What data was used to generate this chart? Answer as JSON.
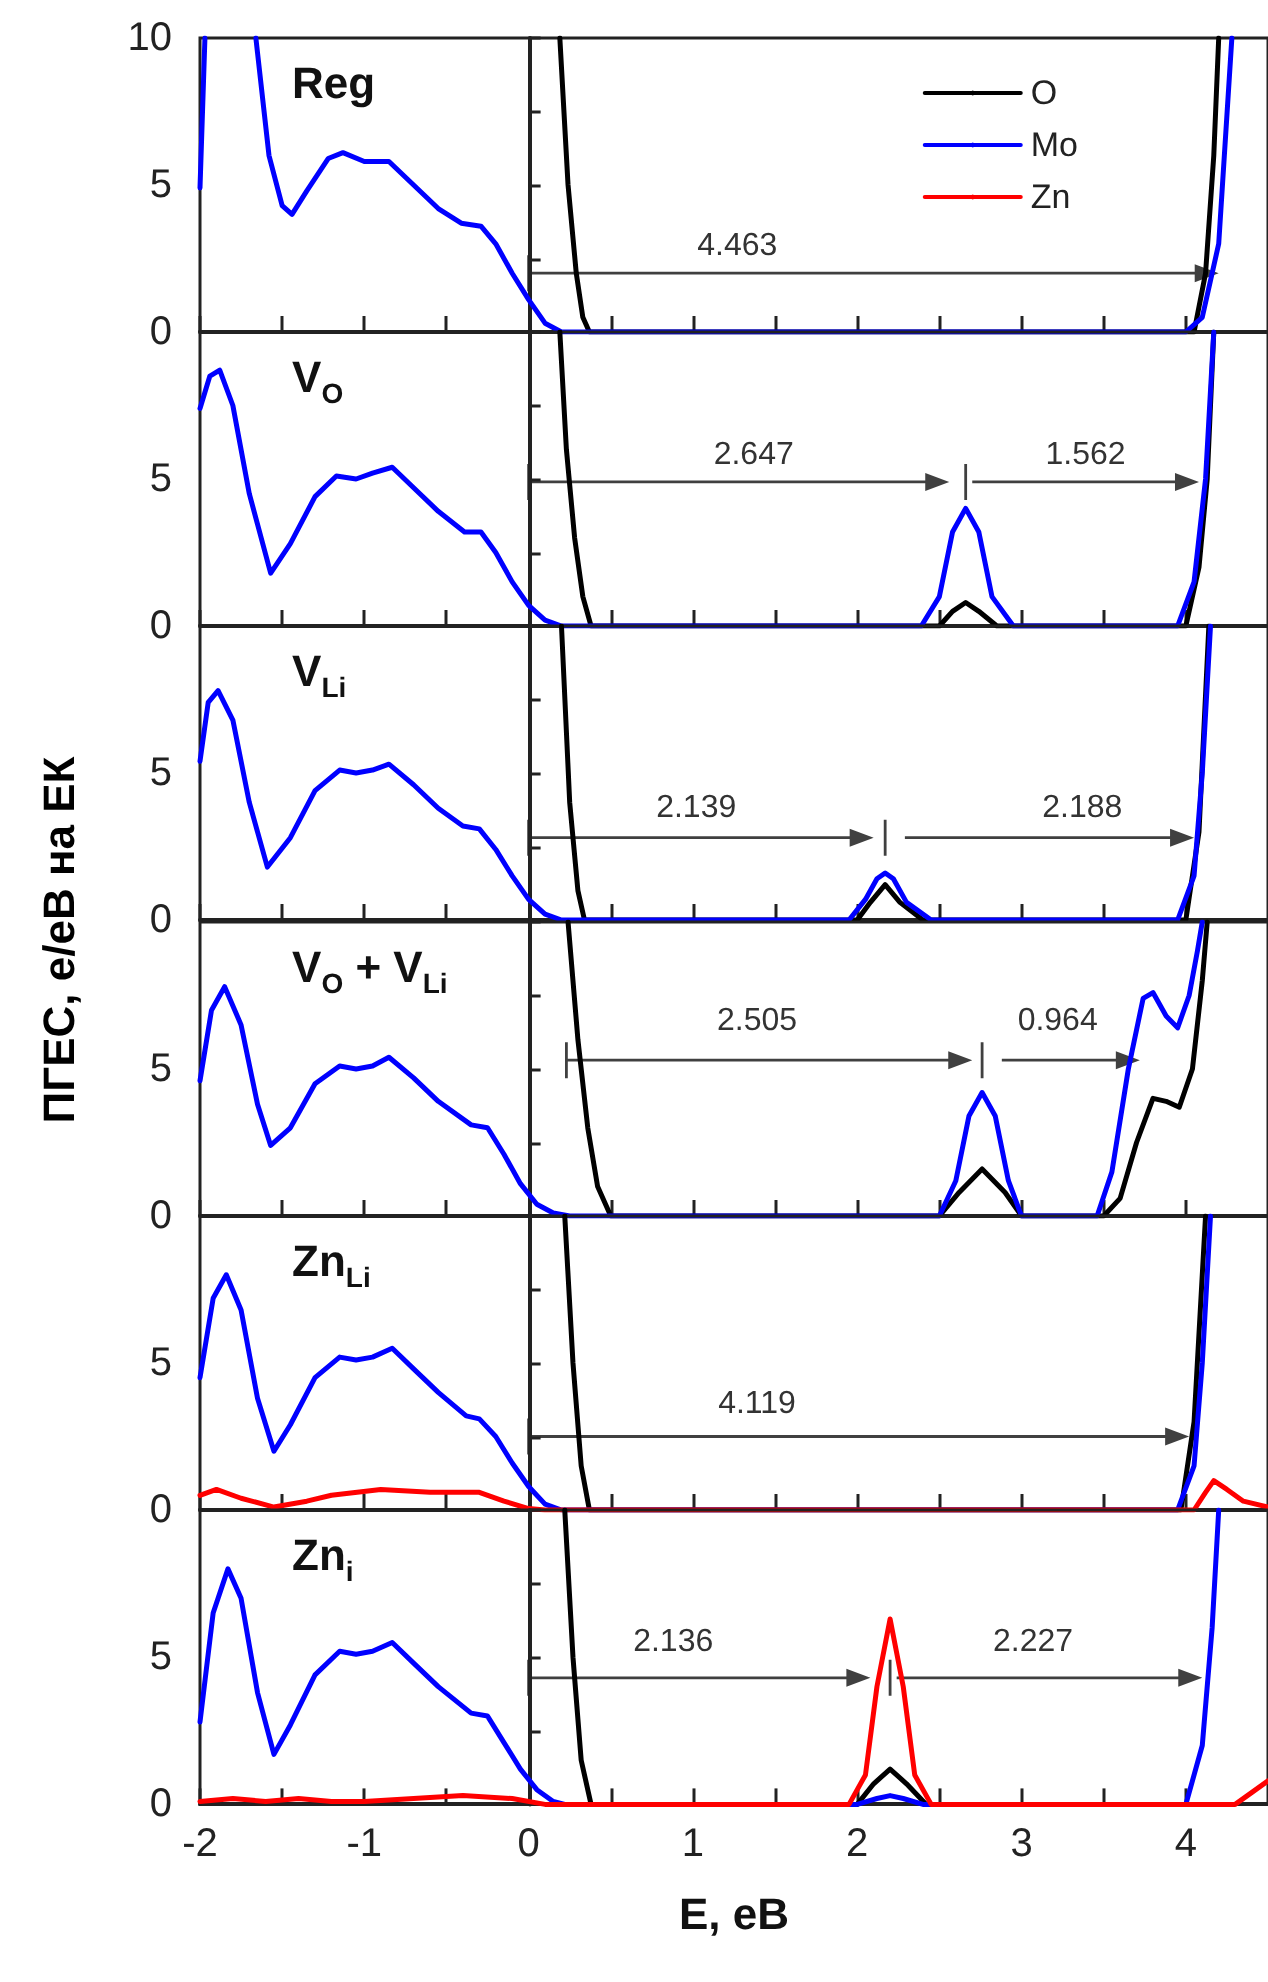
{
  "chart_data": [
    {
      "type": "line",
      "title": "Reg",
      "marker": "none",
      "line_style": "solid",
      "legend": "top right",
      "tick_labels": "y",
      "xlim": [
        -2,
        4.5
      ],
      "ylim": [
        0,
        10
      ],
      "xticks": [
        -2,
        {
          "value": -1.5,
          "label": null
        },
        -1,
        {
          "value": -0.5,
          "label": null
        },
        0,
        {
          "value": 0.5,
          "label": null
        },
        1,
        {
          "value": 1.5,
          "label": null
        },
        2,
        {
          "value": 2.5,
          "label": null
        },
        3,
        {
          "value": 3.5,
          "label": null
        },
        4
      ],
      "yticks": [
        0,
        {
          "value": 2.5,
          "label": null
        },
        5,
        {
          "value": 7.5,
          "label": null
        },
        10
      ],
      "annotations": [
        "4.463"
      ],
      "series": [
        {
          "name": "O",
          "color": "#000000",
          "x": [
            0.19,
            0.24,
            0.29,
            0.33,
            0.37,
            4.05,
            4.12,
            4.17,
            4.2
          ],
          "values": [
            10,
            5,
            2,
            0.5,
            0,
            0,
            2,
            6,
            10
          ]
        },
        {
          "name": "Mo",
          "color": "#0000ff",
          "x": [
            -2,
            -1.97,
            -1.8,
            -1.66,
            -1.58,
            -1.5,
            -1.44,
            -1.35,
            -1.22,
            -1.13,
            -1.0,
            -0.85,
            -0.7,
            -0.55,
            -0.41,
            -0.29,
            -0.2,
            -0.1,
            0,
            0.1,
            0.2,
            4.0,
            4.1,
            4.2,
            4.28
          ],
          "values": [
            4.9,
            10,
            null,
            10,
            6,
            4.3,
            4.0,
            4.8,
            5.9,
            6.1,
            5.8,
            5.8,
            5.0,
            4.2,
            3.7,
            3.6,
            3.0,
            2.0,
            1.1,
            0.3,
            0,
            0,
            0.5,
            3,
            10
          ]
        },
        {
          "name": "Zn",
          "color": "#ff0000"
        }
      ]
    },
    {
      "type": "line",
      "title": "V$_{O}$",
      "marker": "none",
      "line_style": "solid",
      "tick_labels": "y",
      "xlim": [
        -2,
        4.5
      ],
      "ylim": [
        0,
        10
      ],
      "xticks": [
        -2,
        {
          "value": -1.5,
          "label": null
        },
        -1,
        {
          "value": -0.5,
          "label": null
        },
        0,
        {
          "value": 0.5,
          "label": null
        },
        1,
        {
          "value": 1.5,
          "label": null
        },
        2,
        {
          "value": 2.5,
          "label": null
        },
        3,
        {
          "value": 3.5,
          "label": null
        },
        4
      ],
      "yticks": [
        0,
        {
          "value": 2.5,
          "label": null
        },
        5,
        {
          "value": 7.5,
          "label": null
        },
        {
          "value": 10,
          "label": null
        }
      ],
      "annotations": [
        "2.647",
        "1.562"
      ],
      "series": [
        {
          "color": "#000000",
          "x": [
            0.19,
            0.23,
            0.28,
            0.33,
            0.38,
            2.5,
            2.58,
            2.66,
            2.74,
            2.85,
            4.0,
            4.08,
            4.13,
            4.17
          ],
          "values": [
            10,
            6,
            3,
            1,
            0,
            0,
            0.5,
            0.8,
            0.5,
            0,
            0,
            2,
            5,
            10
          ]
        },
        {
          "color": "#0000ff",
          "x": [
            -2,
            -1.94,
            -1.88,
            -1.8,
            -1.7,
            -1.57,
            -1.45,
            -1.3,
            -1.17,
            -1.05,
            -0.95,
            -0.83,
            -0.7,
            -0.55,
            -0.39,
            -0.29,
            -0.2,
            -0.1,
            0,
            0.1,
            0.2,
            2.39,
            2.5,
            2.58,
            2.66,
            2.74,
            2.82,
            2.95,
            3.95,
            4.05,
            4.12,
            4.17
          ],
          "values": [
            7.4,
            8.5,
            8.7,
            7.5,
            4.5,
            1.8,
            2.8,
            4.4,
            5.1,
            5.0,
            5.2,
            5.4,
            4.7,
            3.9,
            3.2,
            3.2,
            2.5,
            1.5,
            0.7,
            0.2,
            0,
            0,
            1.0,
            3.2,
            4.0,
            3.2,
            1.0,
            0,
            0,
            1.5,
            5,
            10
          ]
        }
      ]
    },
    {
      "type": "line",
      "title": "V$_{Li}$",
      "ylabel": "ПГЕС, е/еВ на ЕК",
      "marker": "none",
      "line_style": "solid",
      "tick_labels": "y",
      "xlim": [
        -2,
        4.5
      ],
      "ylim": [
        0,
        10
      ],
      "xticks": [
        -2,
        {
          "value": -1.5,
          "label": null
        },
        -1,
        {
          "value": -0.5,
          "label": null
        },
        0,
        {
          "value": 0.5,
          "label": null
        },
        1,
        {
          "value": 1.5,
          "label": null
        },
        2,
        {
          "value": 2.5,
          "label": null
        },
        3,
        {
          "value": 3.5,
          "label": null
        },
        4
      ],
      "yticks": [
        0,
        {
          "value": 2.5,
          "label": null
        },
        5,
        {
          "value": 7.5,
          "label": null
        },
        {
          "value": 10,
          "label": null
        }
      ],
      "annotations": [
        "2.139",
        "2.188"
      ],
      "series": [
        {
          "color": "#000000",
          "x": [
            0.2,
            0.25,
            0.3,
            0.34,
            2.0,
            2.08,
            2.17,
            2.26,
            2.4,
            4.0,
            4.08,
            4.14
          ],
          "values": [
            10,
            4,
            1,
            0,
            0,
            0.6,
            1.2,
            0.6,
            0,
            0,
            3,
            10
          ]
        },
        {
          "color": "#0000ff",
          "x": [
            -2,
            -1.95,
            -1.89,
            -1.8,
            -1.7,
            -1.59,
            -1.45,
            -1.3,
            -1.15,
            -1.05,
            -0.95,
            -0.85,
            -0.7,
            -0.55,
            -0.4,
            -0.3,
            -0.2,
            -0.1,
            0,
            0.1,
            0.2,
            1.95,
            2.05,
            2.12,
            2.17,
            2.22,
            2.3,
            2.45,
            3.95,
            4.05,
            4.1,
            4.15
          ],
          "values": [
            5.4,
            7.4,
            7.8,
            6.8,
            4.0,
            1.8,
            2.8,
            4.4,
            5.1,
            5.0,
            5.1,
            5.3,
            4.6,
            3.8,
            3.2,
            3.1,
            2.4,
            1.5,
            0.7,
            0.2,
            0,
            0,
            0.7,
            1.4,
            1.6,
            1.4,
            0.6,
            0,
            0,
            1.5,
            5,
            10
          ]
        }
      ]
    },
    {
      "type": "line",
      "title": "V$_{O}$ + V$_{Li}$",
      "marker": "none",
      "line_style": "solid",
      "tick_labels": "y",
      "xlim": [
        -2,
        4.5
      ],
      "ylim": [
        0,
        10
      ],
      "xticks": [
        -2,
        {
          "value": -1.5,
          "label": null
        },
        -1,
        {
          "value": -0.5,
          "label": null
        },
        0,
        {
          "value": 0.5,
          "label": null
        },
        1,
        {
          "value": 1.5,
          "label": null
        },
        2,
        {
          "value": 2.5,
          "label": null
        },
        3,
        {
          "value": 3.5,
          "label": null
        },
        4
      ],
      "yticks": [
        0,
        {
          "value": 2.5,
          "label": null
        },
        5,
        {
          "value": 7.5,
          "label": null
        },
        {
          "value": 10,
          "label": null
        }
      ],
      "annotations": [
        "2.505",
        "0.964"
      ],
      "series": [
        {
          "color": "#000000",
          "x": [
            0.24,
            0.3,
            0.36,
            0.42,
            0.5,
            2.5,
            2.62,
            2.76,
            2.9,
            3.0,
            3.5,
            3.6,
            3.7,
            3.8,
            3.88,
            3.96,
            4.04,
            4.1,
            4.13
          ],
          "values": [
            10,
            6,
            3,
            1,
            0,
            0,
            0.8,
            1.6,
            0.8,
            0,
            0,
            0.6,
            2.5,
            4.0,
            3.9,
            3.7,
            5,
            8,
            10
          ]
        },
        {
          "color": "#0000ff",
          "x": [
            -2,
            -1.93,
            -1.85,
            -1.75,
            -1.65,
            -1.57,
            -1.45,
            -1.3,
            -1.15,
            -1.05,
            -0.95,
            -0.85,
            -0.7,
            -0.55,
            -0.35,
            -0.25,
            -0.15,
            -0.05,
            0.05,
            0.15,
            0.25,
            2.5,
            2.6,
            2.68,
            2.76,
            2.84,
            2.92,
            3.0,
            3.46,
            3.55,
            3.65,
            3.74,
            3.8,
            3.88,
            3.95,
            4.02,
            4.07,
            4.1
          ],
          "values": [
            4.6,
            7.0,
            7.8,
            6.5,
            3.8,
            2.4,
            3.0,
            4.5,
            5.1,
            5.0,
            5.1,
            5.4,
            4.7,
            3.9,
            3.1,
            3.0,
            2.1,
            1.1,
            0.4,
            0.1,
            0,
            0,
            1.2,
            3.4,
            4.2,
            3.4,
            1.2,
            0,
            0,
            1.5,
            5.0,
            7.4,
            7.6,
            6.8,
            6.4,
            7.5,
            9,
            10
          ]
        }
      ]
    },
    {
      "type": "line",
      "title": "Zn$_{Li}$",
      "marker": "none",
      "line_style": "solid",
      "tick_labels": "y",
      "xlim": [
        -2,
        4.5
      ],
      "ylim": [
        0,
        10
      ],
      "xticks": [
        -2,
        {
          "value": -1.5,
          "label": null
        },
        -1,
        {
          "value": -0.5,
          "label": null
        },
        0,
        {
          "value": 0.5,
          "label": null
        },
        1,
        {
          "value": 1.5,
          "label": null
        },
        2,
        {
          "value": 2.5,
          "label": null
        },
        3,
        {
          "value": 3.5,
          "label": null
        },
        4
      ],
      "yticks": [
        0,
        {
          "value": 2.5,
          "label": null
        },
        5,
        {
          "value": 7.5,
          "label": null
        },
        {
          "value": 10,
          "label": null
        }
      ],
      "annotations": [
        "4.119"
      ],
      "series": [
        {
          "color": "#000000",
          "x": [
            0.22,
            0.27,
            0.32,
            0.37,
            3.97,
            4.05,
            4.12
          ],
          "values": [
            10,
            5,
            1.5,
            0,
            0,
            3,
            10
          ]
        },
        {
          "color": "#0000ff",
          "x": [
            -2,
            -1.92,
            -1.84,
            -1.75,
            -1.65,
            -1.55,
            -1.45,
            -1.3,
            -1.15,
            -1.05,
            -0.95,
            -0.83,
            -0.7,
            -0.55,
            -0.38,
            -0.3,
            -0.2,
            -0.1,
            0,
            0.1,
            0.2,
            3.95,
            4.05,
            4.1,
            4.15
          ],
          "values": [
            4.5,
            7.2,
            8.0,
            6.8,
            3.8,
            2.0,
            2.9,
            4.5,
            5.2,
            5.1,
            5.2,
            5.5,
            4.8,
            4.0,
            3.2,
            3.1,
            2.5,
            1.6,
            0.8,
            0.2,
            0,
            0,
            1.5,
            5,
            10
          ]
        },
        {
          "color": "#ff0000",
          "x": [
            -2,
            -1.9,
            -1.75,
            -1.55,
            -1.35,
            -1.2,
            -0.9,
            -0.6,
            -0.3,
            -0.15,
            0,
            0.1,
            4.05,
            4.12,
            4.17,
            4.25,
            4.35,
            4.5
          ],
          "values": [
            0.5,
            0.7,
            0.4,
            0.1,
            0.3,
            0.5,
            0.7,
            0.6,
            0.6,
            0.3,
            0.05,
            0,
            0,
            0.6,
            1.0,
            0.7,
            0.3,
            0.1
          ]
        }
      ]
    },
    {
      "type": "line",
      "title": "Zn$_{i}$",
      "xlabel": "Е, еВ",
      "marker": "none",
      "line_style": "solid",
      "xlim": [
        -2,
        4.5
      ],
      "ylim": [
        0,
        10
      ],
      "xticks": [
        -2,
        {
          "value": -1.5,
          "label": null
        },
        -1,
        {
          "value": -0.5,
          "label": null
        },
        0,
        {
          "value": 0.5,
          "label": null
        },
        1,
        {
          "value": 1.5,
          "label": null
        },
        2,
        {
          "value": 2.5,
          "label": null
        },
        3,
        {
          "value": 3.5,
          "label": null
        },
        4
      ],
      "yticks": [
        0,
        {
          "value": 2.5,
          "label": null
        },
        5,
        {
          "value": 7.5,
          "label": null
        },
        {
          "value": 10,
          "label": null
        }
      ],
      "annotations": [
        "2.136",
        "2.227"
      ],
      "series": [
        {
          "color": "#000000",
          "x": [
            0.22,
            0.27,
            0.32,
            0.38,
            2.0,
            2.1,
            2.2,
            2.3,
            2.42
          ],
          "values": [
            10,
            5,
            1.5,
            0,
            0,
            0.7,
            1.2,
            0.7,
            0
          ]
        },
        {
          "color": "#0000ff",
          "x": [
            -2,
            -1.92,
            -1.83,
            -1.75,
            -1.65,
            -1.55,
            -1.45,
            -1.3,
            -1.15,
            -1.05,
            -0.95,
            -0.83,
            -0.7,
            -0.55,
            -0.35,
            -0.25,
            -0.15,
            -0.05,
            0.05,
            0.15,
            0.22,
            2.0,
            2.12,
            2.2,
            2.28,
            2.4,
            4.0,
            4.1,
            4.16,
            4.2
          ],
          "values": [
            2.8,
            6.5,
            8.0,
            7.0,
            3.8,
            1.7,
            2.7,
            4.4,
            5.2,
            5.1,
            5.2,
            5.5,
            4.8,
            4.0,
            3.1,
            3.0,
            2.1,
            1.2,
            0.5,
            0.1,
            0,
            0,
            0.2,
            0.3,
            0.2,
            0,
            0,
            2,
            6,
            10
          ]
        },
        {
          "color": "#ff0000",
          "x": [
            -2,
            -1.8,
            -1.6,
            -1.4,
            -1.2,
            -1.0,
            -0.7,
            -0.4,
            -0.1,
            0.1,
            1.95,
            2.05,
            2.12,
            2.2,
            2.28,
            2.35,
            2.45,
            4.3,
            4.4,
            4.5
          ],
          "values": [
            0.1,
            0.2,
            0.1,
            0.2,
            0.1,
            0.1,
            0.2,
            0.3,
            0.2,
            0,
            0,
            1.0,
            4.0,
            6.3,
            4.0,
            1.0,
            0,
            0,
            0.4,
            0.8
          ]
        }
      ]
    }
  ]
}
